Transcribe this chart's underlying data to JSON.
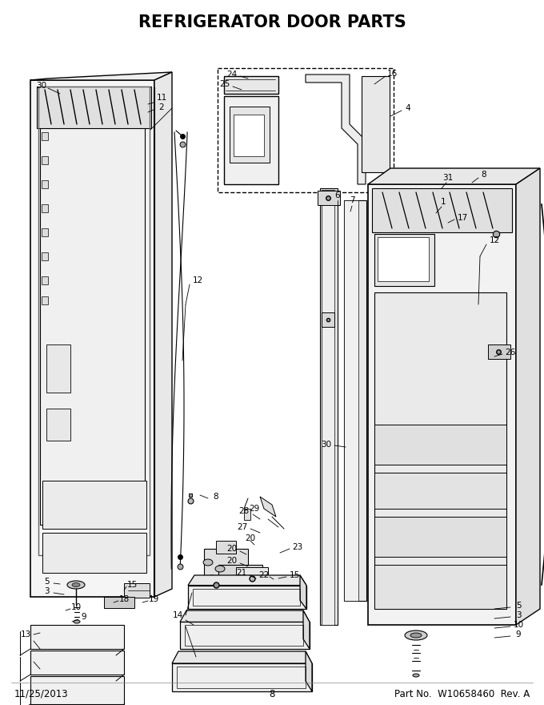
{
  "title": "REFRIGERATOR DOOR PARTS",
  "title_fontsize": 15,
  "title_fontweight": "bold",
  "footer_left": "11/25/2013",
  "footer_center": "8",
  "footer_right": "Part No.  W10658460  Rev. A",
  "footer_fontsize": 8.5,
  "bg_color": "#ffffff",
  "line_color": "#000000",
  "fig_width": 6.8,
  "fig_height": 8.8,
  "dpi": 100
}
